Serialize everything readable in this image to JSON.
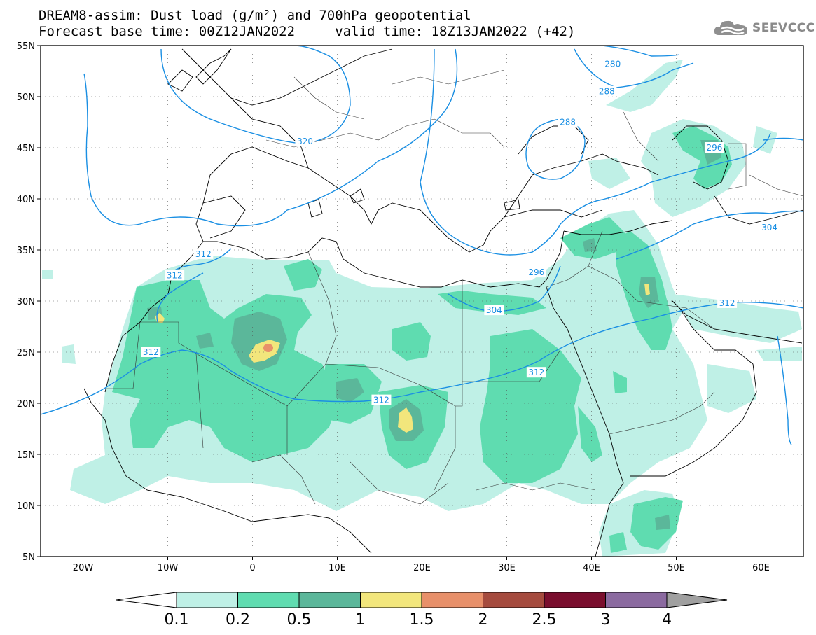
{
  "title": {
    "line1": "DREAM8-assim: Dust load (g/m²) and 700hPa geopotential",
    "line2": "Forecast base time: 00Z12JAN2022     valid time: 18Z13JAN2022 (+42)"
  },
  "logo": {
    "text": "SEEVCCC",
    "icon": "cloud-logo-icon"
  },
  "map": {
    "lat_labels": [
      "55N",
      "50N",
      "45N",
      "40N",
      "35N",
      "30N",
      "25N",
      "20N",
      "15N",
      "10N",
      "5N"
    ],
    "lon_labels": [
      "20W",
      "10W",
      "0",
      "10E",
      "20E",
      "30E",
      "40E",
      "50E",
      "60E"
    ],
    "extent": {
      "lon": [
        -25,
        65
      ],
      "lat": [
        5,
        55
      ]
    },
    "contour_labels": [
      {
        "text": "280",
        "lon": 42.5,
        "lat": 53.2
      },
      {
        "text": "288",
        "lon": 41.8,
        "lat": 50.5
      },
      {
        "text": "288",
        "lon": 37.2,
        "lat": 47.5
      },
      {
        "text": "296",
        "lon": 54.5,
        "lat": 45.0
      },
      {
        "text": "320",
        "lon": 6.2,
        "lat": 45.6
      },
      {
        "text": "304",
        "lon": 61.0,
        "lat": 37.2
      },
      {
        "text": "312",
        "lon": -5.8,
        "lat": 34.6
      },
      {
        "text": "312",
        "lon": -9.2,
        "lat": 32.5
      },
      {
        "text": "296",
        "lon": 33.5,
        "lat": 32.8
      },
      {
        "text": "304",
        "lon": 28.5,
        "lat": 29.1
      },
      {
        "text": "312",
        "lon": 56.0,
        "lat": 29.8
      },
      {
        "text": "312",
        "lon": -12.0,
        "lat": 25.0
      },
      {
        "text": "312",
        "lon": 33.5,
        "lat": 23.0
      },
      {
        "text": "312",
        "lon": 15.2,
        "lat": 20.3
      }
    ],
    "dust_colors": {
      "c01": "#bff0e6",
      "c02": "#5fdcb0",
      "c05": "#5bb79a",
      "c1": "#f2e67c",
      "c15": "#e8906a",
      "c2": "#a54b3e",
      "c25": "#7a0e2e",
      "c3": "#8b6aa0",
      "c4": "#a0a0a0"
    },
    "contour_color": "#1a8fe3"
  },
  "colorbar": {
    "labels": [
      "0.1",
      "0.2",
      "0.5",
      "1",
      "1.5",
      "2",
      "2.5",
      "3",
      "4"
    ],
    "colors": [
      "#bff0e6",
      "#5fdcb0",
      "#5bb79a",
      "#f2e67c",
      "#e8906a",
      "#a54b3e",
      "#7a0e2e",
      "#8b6aa0"
    ],
    "left_arrow_color": "#ffffff",
    "right_arrow_color": "#a0a0a0"
  }
}
